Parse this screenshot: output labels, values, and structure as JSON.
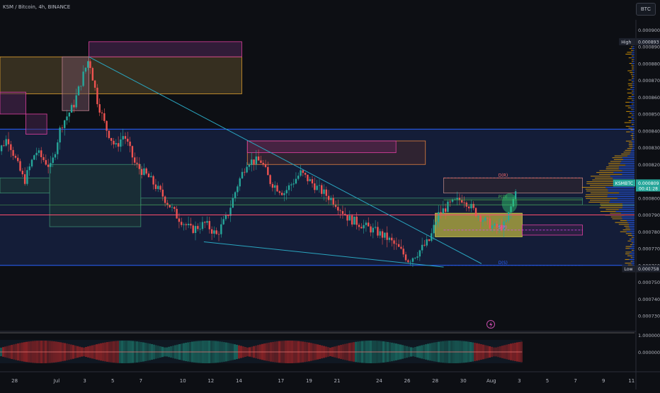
{
  "header": {
    "symbol_line": "KSM / Bitcoin, 4h, BINANCE"
  },
  "currency_button": "BTC",
  "chart_data": {
    "type": "candlestick",
    "symbol": "KSM / Bitcoin",
    "interval": "4h",
    "exchange": "BINANCE",
    "y_ticks": [
      "0.000900",
      "0.000890",
      "0.000880",
      "0.000870",
      "0.000860",
      "0.000850",
      "0.000840",
      "0.000830",
      "0.000820",
      "0.000810",
      "0.000800",
      "0.000790",
      "0.000780",
      "0.000770",
      "0.000760",
      "0.000750",
      "0.000740",
      "0.000730"
    ],
    "ylim": [
      0.000722,
      0.000906
    ],
    "x_ticks": [
      {
        "label": "28",
        "day": -2
      },
      {
        "label": "Jul",
        "day": 1
      },
      {
        "label": "3",
        "day": 3
      },
      {
        "label": "5",
        "day": 5
      },
      {
        "label": "7",
        "day": 7
      },
      {
        "label": "10",
        "day": 10
      },
      {
        "label": "12",
        "day": 12
      },
      {
        "label": "14",
        "day": 14
      },
      {
        "label": "17",
        "day": 17
      },
      {
        "label": "19",
        "day": 19
      },
      {
        "label": "21",
        "day": 21
      },
      {
        "label": "24",
        "day": 24
      },
      {
        "label": "26",
        "day": 26
      },
      {
        "label": "28",
        "day": 28
      },
      {
        "label": "30",
        "day": 30
      },
      {
        "label": "Aug",
        "day": 32
      },
      {
        "label": "3",
        "day": 34
      },
      {
        "label": "5",
        "day": 36
      },
      {
        "label": "7",
        "day": 38
      },
      {
        "label": "9",
        "day": 40
      },
      {
        "label": "11",
        "day": 42
      }
    ],
    "price_labels": {
      "high": {
        "tag": "High",
        "value": "0.000893"
      },
      "last": {
        "tag": "KSMBTC",
        "value": "0.000809",
        "countdown": "00:41:28"
      },
      "low": {
        "tag": "Low",
        "value": "0.000758"
      }
    },
    "level_lines": [
      {
        "label": "D(R)",
        "value": 0.000812,
        "color": "#ff6b6b"
      },
      {
        "label": "P(D)",
        "value": 0.000799,
        "color": "#4caf50"
      },
      {
        "label": "S(P)",
        "value": 0.000781,
        "color": "#e040fb"
      },
      {
        "label": "D(S)",
        "value": 0.00076,
        "color": "#2962ff"
      }
    ],
    "indicator_ticks": [
      "1.000000",
      "0.000000"
    ],
    "colors": {
      "up": "#26a69a",
      "down": "#ef5350",
      "background": "#0d0f14",
      "volume_profile_up": "#2962ff",
      "volume_profile_down": "#f2a900"
    }
  }
}
